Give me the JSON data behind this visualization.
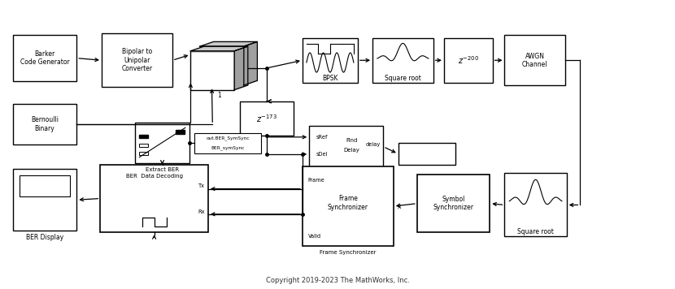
{
  "copyright": "Copyright 2019-2023 The MathWorks, Inc.",
  "bg": "#ffffff",
  "blocks": {
    "barker": [
      0.018,
      0.72,
      0.095,
      0.16
    ],
    "bernoulli": [
      0.018,
      0.5,
      0.095,
      0.14
    ],
    "bipolar": [
      0.15,
      0.7,
      0.105,
      0.185
    ],
    "bpsk": [
      0.448,
      0.715,
      0.082,
      0.155
    ],
    "sqrtA": [
      0.552,
      0.715,
      0.09,
      0.155
    ],
    "delay200": [
      0.658,
      0.715,
      0.072,
      0.155
    ],
    "awgn": [
      0.748,
      0.705,
      0.09,
      0.175
    ],
    "delay173": [
      0.355,
      0.53,
      0.08,
      0.12
    ],
    "extract": [
      0.2,
      0.435,
      0.08,
      0.14
    ],
    "find_delay": [
      0.458,
      0.42,
      0.11,
      0.145
    ],
    "delay_out": [
      0.59,
      0.43,
      0.085,
      0.075
    ],
    "ber_disp": [
      0.018,
      0.2,
      0.095,
      0.215
    ],
    "data_dec": [
      0.148,
      0.195,
      0.16,
      0.235
    ],
    "frame_sync": [
      0.448,
      0.148,
      0.135,
      0.275
    ],
    "sym_sync": [
      0.618,
      0.195,
      0.108,
      0.2
    ],
    "sqrtB": [
      0.748,
      0.18,
      0.092,
      0.22
    ]
  },
  "mux": [
    0.282,
    0.69,
    0.065,
    0.175
  ],
  "font": 6.5
}
